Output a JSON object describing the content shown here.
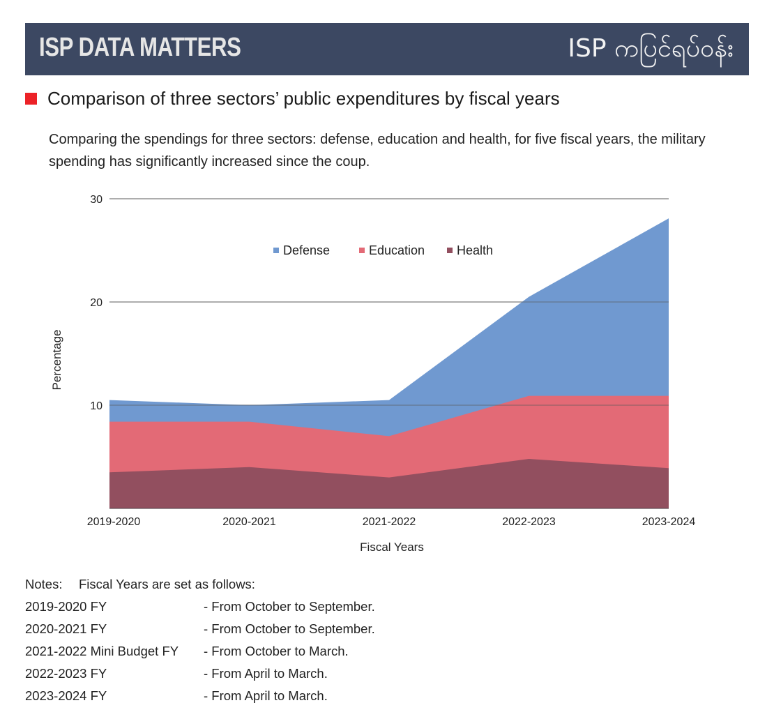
{
  "banner": {
    "title": "ISP DATA MATTERS",
    "subtitle": "ISP ကပြင်ရပ်ဝန်း"
  },
  "heading": {
    "title": "Comparison of three sectors’ public expenditures by fiscal years",
    "bullet_color": "#ec2227"
  },
  "description": "Comparing the spendings for three sectors: defense, education and health, for five fiscal years, the military spending has significantly increased since the coup.",
  "chart_data": {
    "type": "area",
    "title": "",
    "xlabel": "Fiscal Years",
    "ylabel": "Percentage",
    "categories": [
      "2019-2020",
      "2020-2021",
      "2021-2022",
      "2022-2023",
      "2023-2024"
    ],
    "series": [
      {
        "name": "Defense",
        "color": "#7099d0",
        "values": [
          10.5,
          10.0,
          10.5,
          20.5,
          28.1
        ]
      },
      {
        "name": "Education",
        "color": "#e36a76",
        "values": [
          8.4,
          8.4,
          7.0,
          10.9,
          10.9
        ]
      },
      {
        "name": "Health",
        "color": "#924f5f",
        "values": [
          3.5,
          4.0,
          3.0,
          4.8,
          3.9
        ]
      }
    ],
    "ylim": [
      0,
      30
    ],
    "yticks": [
      10,
      20,
      30
    ],
    "grid": true,
    "legend_position": "top-center",
    "stacked": false
  },
  "notes": {
    "label": "Notes:",
    "intro": "Fiscal Years are set as follows:",
    "rows": [
      {
        "fy": "2019-2020 FY",
        "period": "- From October to September."
      },
      {
        "fy": "2020-2021 FY",
        "period": "- From October to September."
      },
      {
        "fy": "2021-2022 Mini Budget FY",
        "period": "- From October to March."
      },
      {
        "fy": "2022-2023 FY",
        "period": "- From April to March."
      },
      {
        "fy": "2023-2024 FY",
        "period": "- From April to March."
      }
    ]
  }
}
